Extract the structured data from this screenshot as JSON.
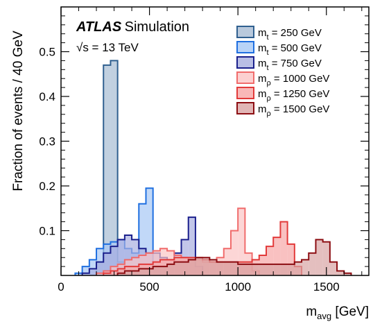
{
  "chart_data": {
    "type": "step-histogram",
    "xlabel": "m_avg [GeV]",
    "ylabel": "Fraction of events / 40 GeV",
    "xlim": [
      0,
      1740
    ],
    "ylim": [
      0,
      0.6
    ],
    "bin_width": 40,
    "x_ticks": [
      0,
      500,
      1000,
      1500
    ],
    "y_ticks": [
      0.1,
      0.2,
      0.3,
      0.4,
      0.5
    ],
    "grid": false,
    "legend_position": "top-right",
    "annotations": {
      "experiment": "ATLAS",
      "label": "Simulation",
      "energy": "√s = 13 TeV"
    },
    "series": [
      {
        "name": "m_t = 250 GeV",
        "mass_symbol": "t",
        "mass_value": "250 GeV",
        "fill": "#a7bcd3",
        "edge": "#2f5f8f",
        "bins": [
          [
            200,
            0.03
          ],
          [
            240,
            0.47
          ],
          [
            280,
            0.48
          ],
          [
            320,
            0.03
          ]
        ]
      },
      {
        "name": "m_t = 500 GeV",
        "mass_symbol": "t",
        "mass_value": "500 GeV",
        "fill": "#a6c8f5",
        "edge": "#1f6fe0",
        "bins": [
          [
            80,
            0.005
          ],
          [
            120,
            0.02
          ],
          [
            160,
            0.035
          ],
          [
            200,
            0.06
          ],
          [
            240,
            0.07
          ],
          [
            280,
            0.075
          ],
          [
            320,
            0.08
          ],
          [
            360,
            0.06
          ],
          [
            400,
            0.05
          ],
          [
            440,
            0.16
          ],
          [
            480,
            0.195
          ],
          [
            520,
            0.01
          ]
        ]
      },
      {
        "name": "m_t = 750 GeV",
        "mass_symbol": "t",
        "mass_value": "750 GeV",
        "fill": "#a8aedf",
        "edge": "#1a1f8c",
        "bins": [
          [
            120,
            0.005
          ],
          [
            160,
            0.015
          ],
          [
            200,
            0.03
          ],
          [
            240,
            0.05
          ],
          [
            280,
            0.065
          ],
          [
            320,
            0.08
          ],
          [
            360,
            0.09
          ],
          [
            400,
            0.08
          ],
          [
            440,
            0.06
          ],
          [
            480,
            0.05
          ],
          [
            520,
            0.05
          ],
          [
            560,
            0.04
          ],
          [
            600,
            0.035
          ],
          [
            640,
            0.05
          ],
          [
            680,
            0.08
          ],
          [
            720,
            0.13
          ],
          [
            760,
            0.02
          ]
        ]
      },
      {
        "name": "m_ρ = 1000 GeV",
        "mass_symbol": "ρ",
        "mass_value": "1000 GeV",
        "fill": "#fbc4c4",
        "edge": "#f06b6b",
        "bins": [
          [
            200,
            0.005
          ],
          [
            240,
            0.01
          ],
          [
            280,
            0.02
          ],
          [
            320,
            0.025
          ],
          [
            360,
            0.035
          ],
          [
            400,
            0.04
          ],
          [
            440,
            0.045
          ],
          [
            480,
            0.05
          ],
          [
            520,
            0.055
          ],
          [
            560,
            0.06
          ],
          [
            600,
            0.055
          ],
          [
            640,
            0.045
          ],
          [
            680,
            0.04
          ],
          [
            720,
            0.035
          ],
          [
            760,
            0.035
          ],
          [
            800,
            0.03
          ],
          [
            840,
            0.03
          ],
          [
            880,
            0.04
          ],
          [
            920,
            0.06
          ],
          [
            960,
            0.1
          ],
          [
            1000,
            0.15
          ],
          [
            1040,
            0.05
          ],
          [
            1080,
            0.01
          ]
        ]
      },
      {
        "name": "m_ρ = 1250 GeV",
        "mass_symbol": "ρ",
        "mass_value": "1250 GeV",
        "fill": "#f7a6a6",
        "edge": "#e23a3a",
        "bins": [
          [
            240,
            0.005
          ],
          [
            280,
            0.01
          ],
          [
            320,
            0.015
          ],
          [
            360,
            0.02
          ],
          [
            400,
            0.02
          ],
          [
            440,
            0.025
          ],
          [
            480,
            0.025
          ],
          [
            520,
            0.03
          ],
          [
            560,
            0.035
          ],
          [
            600,
            0.035
          ],
          [
            640,
            0.04
          ],
          [
            680,
            0.04
          ],
          [
            720,
            0.04
          ],
          [
            760,
            0.04
          ],
          [
            800,
            0.035
          ],
          [
            840,
            0.03
          ],
          [
            880,
            0.03
          ],
          [
            920,
            0.03
          ],
          [
            960,
            0.03
          ],
          [
            1000,
            0.03
          ],
          [
            1040,
            0.03
          ],
          [
            1080,
            0.035
          ],
          [
            1120,
            0.045
          ],
          [
            1160,
            0.065
          ],
          [
            1200,
            0.085
          ],
          [
            1240,
            0.12
          ],
          [
            1280,
            0.07
          ],
          [
            1320,
            0.02
          ]
        ]
      },
      {
        "name": "m_ρ = 1500 GeV",
        "mass_symbol": "ρ",
        "mass_value": "1500 GeV",
        "fill": "#d9a4a4",
        "edge": "#8c0d12",
        "bins": [
          [
            320,
            0.005
          ],
          [
            360,
            0.01
          ],
          [
            400,
            0.01
          ],
          [
            440,
            0.015
          ],
          [
            480,
            0.015
          ],
          [
            520,
            0.02
          ],
          [
            560,
            0.02
          ],
          [
            600,
            0.025
          ],
          [
            640,
            0.03
          ],
          [
            680,
            0.03
          ],
          [
            720,
            0.035
          ],
          [
            760,
            0.04
          ],
          [
            800,
            0.04
          ],
          [
            840,
            0.035
          ],
          [
            880,
            0.03
          ],
          [
            920,
            0.03
          ],
          [
            960,
            0.03
          ],
          [
            1000,
            0.025
          ],
          [
            1040,
            0.025
          ],
          [
            1080,
            0.025
          ],
          [
            1120,
            0.025
          ],
          [
            1160,
            0.025
          ],
          [
            1200,
            0.025
          ],
          [
            1240,
            0.025
          ],
          [
            1280,
            0.025
          ],
          [
            1320,
            0.03
          ],
          [
            1360,
            0.035
          ],
          [
            1400,
            0.05
          ],
          [
            1440,
            0.08
          ],
          [
            1480,
            0.075
          ],
          [
            1520,
            0.03
          ],
          [
            1560,
            0.01
          ],
          [
            1600,
            0.005
          ]
        ]
      }
    ]
  }
}
